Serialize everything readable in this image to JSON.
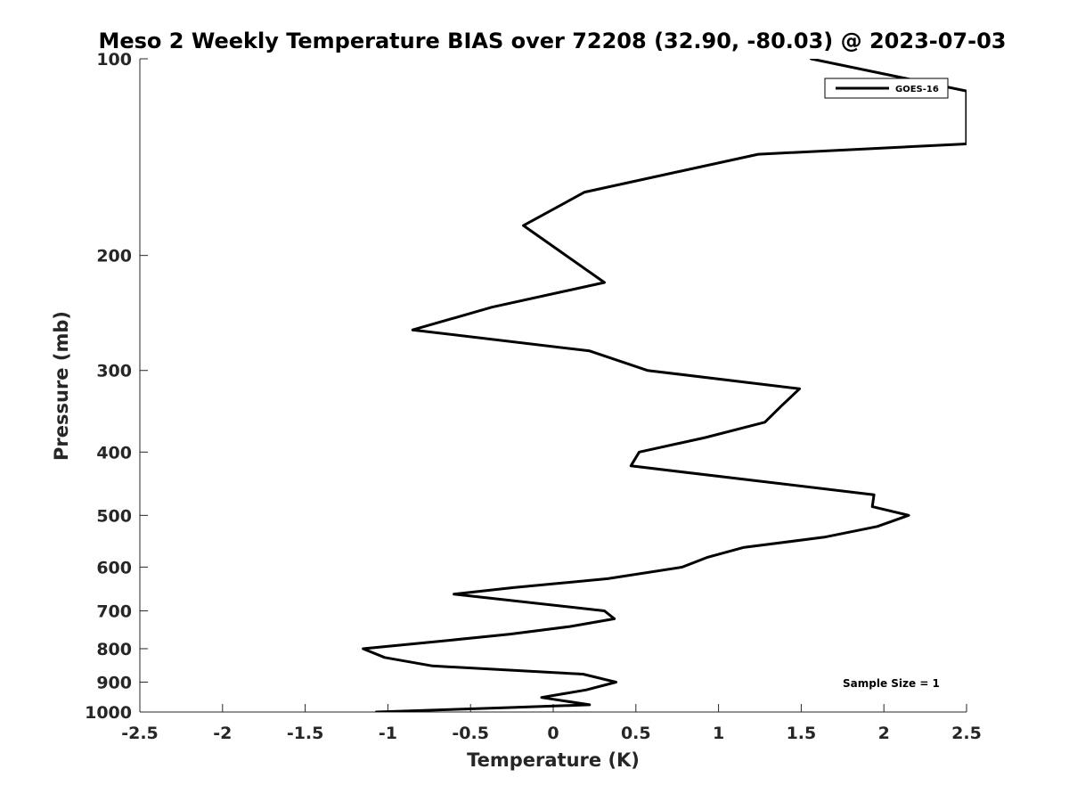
{
  "chart_data": {
    "type": "line",
    "title": "Meso 2 Weekly Temperature BIAS over 72208 (32.90, -80.03) @ 2023-07-03",
    "xlabel": "Temperature (K)",
    "ylabel": "Pressure (mb)",
    "xlim": [
      -2.5,
      2.5
    ],
    "ylim": [
      100,
      1000
    ],
    "y_scale": "log",
    "y_reversed": true,
    "x_ticks": [
      "-2.5",
      "-2",
      "-1.5",
      "-1",
      "-0.5",
      "0",
      "0.5",
      "1",
      "1.5",
      "2",
      "2.5"
    ],
    "y_ticks": [
      "100",
      "200",
      "300",
      "400",
      "500",
      "600",
      "700",
      "800",
      "900",
      "1000"
    ],
    "grid": false,
    "legend": {
      "position": "top-right",
      "entries": [
        "GOES-16"
      ]
    },
    "annotation": "Sample Size = 1",
    "line_color": "#000000",
    "series": [
      {
        "name": "GOES-16",
        "points": [
          {
            "x": -1.07,
            "y": 1000
          },
          {
            "x": -0.3,
            "y": 985
          },
          {
            "x": 0.22,
            "y": 975
          },
          {
            "x": -0.07,
            "y": 950
          },
          {
            "x": 0.2,
            "y": 925
          },
          {
            "x": 0.38,
            "y": 900
          },
          {
            "x": 0.18,
            "y": 875
          },
          {
            "x": -0.73,
            "y": 850
          },
          {
            "x": -1.02,
            "y": 825
          },
          {
            "x": -1.15,
            "y": 800
          },
          {
            "x": -0.7,
            "y": 780
          },
          {
            "x": -0.26,
            "y": 760
          },
          {
            "x": 0.1,
            "y": 740
          },
          {
            "x": 0.37,
            "y": 720
          },
          {
            "x": 0.31,
            "y": 700
          },
          {
            "x": -0.6,
            "y": 660
          },
          {
            "x": -0.24,
            "y": 645
          },
          {
            "x": 0.33,
            "y": 625
          },
          {
            "x": 0.78,
            "y": 600
          },
          {
            "x": 0.93,
            "y": 580
          },
          {
            "x": 1.15,
            "y": 560
          },
          {
            "x": 1.64,
            "y": 540
          },
          {
            "x": 1.96,
            "y": 520
          },
          {
            "x": 2.15,
            "y": 500
          },
          {
            "x": 1.93,
            "y": 485
          },
          {
            "x": 1.94,
            "y": 465
          },
          {
            "x": 0.47,
            "y": 420
          },
          {
            "x": 0.52,
            "y": 400
          },
          {
            "x": 0.92,
            "y": 380
          },
          {
            "x": 1.28,
            "y": 360
          },
          {
            "x": 1.38,
            "y": 340
          },
          {
            "x": 1.49,
            "y": 320
          },
          {
            "x": 0.57,
            "y": 300
          },
          {
            "x": 0.22,
            "y": 280
          },
          {
            "x": -0.85,
            "y": 260
          },
          {
            "x": -0.37,
            "y": 240
          },
          {
            "x": 0.31,
            "y": 220
          },
          {
            "x": -0.18,
            "y": 180
          },
          {
            "x": 0.19,
            "y": 160
          },
          {
            "x": 1.24,
            "y": 140
          },
          {
            "x": 2.5,
            "y": 135
          },
          {
            "x": 2.5,
            "y": 112
          },
          {
            "x": 1.56,
            "y": 100
          }
        ]
      }
    ]
  }
}
